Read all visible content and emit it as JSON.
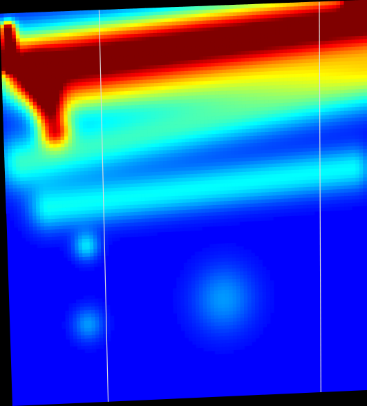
{
  "chart_data": {
    "type": "heatmap",
    "colormap": "jet",
    "colorscale": [
      "#00008f",
      "#0000ff",
      "#00ffff",
      "#ffff00",
      "#ff0000",
      "#800000"
    ],
    "background_color": "#000000",
    "guide_line_color": "#dcdcdc",
    "features": [
      {
        "kind": "band",
        "from": [
          0.08,
          0.86
        ],
        "to": [
          1.0,
          0.95
        ],
        "intensity": 1.0,
        "spread": 0.06
      },
      {
        "kind": "band",
        "from": [
          0.02,
          0.87
        ],
        "to": [
          0.02,
          0.96
        ],
        "intensity": 0.85,
        "spread": 0.015
      },
      {
        "kind": "band",
        "from": [
          0.1,
          0.84
        ],
        "to": [
          0.14,
          0.7
        ],
        "intensity": 0.6,
        "spread": 0.03
      },
      {
        "kind": "band",
        "from": [
          0.05,
          0.62
        ],
        "to": [
          1.0,
          0.78
        ],
        "intensity": 0.3,
        "spread": 0.05
      },
      {
        "kind": "band",
        "from": [
          0.12,
          0.5
        ],
        "to": [
          0.96,
          0.57
        ],
        "intensity": 0.25,
        "spread": 0.04
      },
      {
        "kind": "band",
        "from": [
          0.15,
          0.77
        ],
        "to": [
          1.0,
          0.83
        ],
        "intensity": 0.22,
        "spread": 0.04
      },
      {
        "kind": "blob",
        "at": [
          0.22,
          0.4
        ],
        "intensity": 0.22,
        "spread": 0.025
      },
      {
        "kind": "blob",
        "at": [
          0.6,
          0.25
        ],
        "intensity": 0.15,
        "spread": 0.06
      },
      {
        "kind": "blob",
        "at": [
          0.22,
          0.2
        ],
        "intensity": 0.15,
        "spread": 0.03
      },
      {
        "kind": "blob",
        "at": [
          0.97,
          0.99
        ],
        "intensity": 0.5,
        "spread": 0.02
      }
    ],
    "guide_lines": [
      0.27,
      0.87
    ]
  }
}
